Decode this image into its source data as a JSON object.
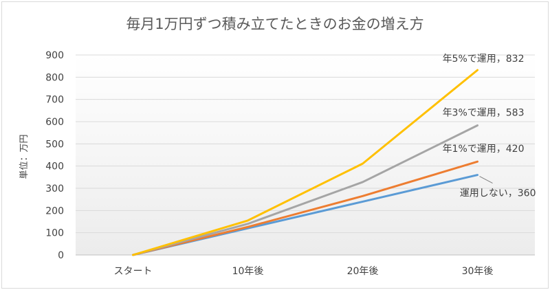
{
  "chart_data": {
    "type": "line",
    "title": "毎月1万円ずつ積み立てたときのお金の増え方",
    "ylabel": "単位：万円",
    "xlabel": "",
    "categories": [
      "スタート",
      "10年後",
      "20年後",
      "30年後"
    ],
    "ylim": [
      0,
      900
    ],
    "yticks": [
      0,
      100,
      200,
      300,
      400,
      500,
      600,
      700,
      800,
      900
    ],
    "grid": true,
    "legend": "none",
    "series": [
      {
        "name": "運用しない",
        "values": [
          0,
          120,
          240,
          360
        ],
        "color": "#5b9bd5",
        "label": "運用しない，360"
      },
      {
        "name": "年1%で運用",
        "values": [
          0,
          126,
          265,
          420
        ],
        "color": "#ed7d31",
        "label": "年1%で運用，420"
      },
      {
        "name": "年3%で運用",
        "values": [
          0,
          140,
          328,
          583
        ],
        "color": "#a5a5a5",
        "label": "年3%で運用，583"
      },
      {
        "name": "年5%で運用",
        "values": [
          0,
          155,
          411,
          832
        ],
        "color": "#ffc000",
        "label": "年5%で運用，832"
      }
    ]
  }
}
